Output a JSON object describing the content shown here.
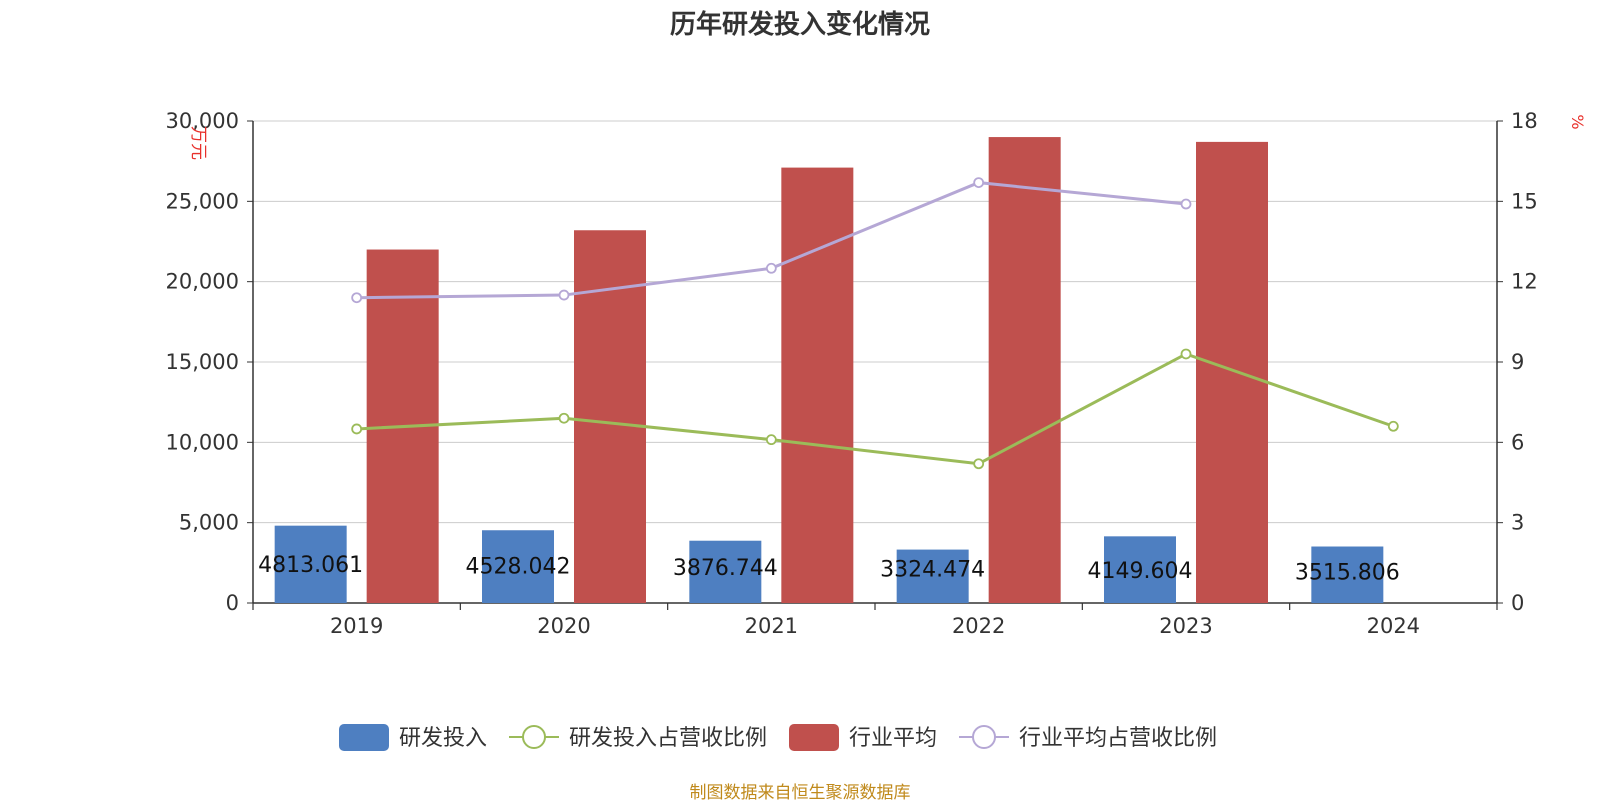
{
  "chart_data": {
    "type": "bar",
    "title": "历年研发投入变化情况",
    "categories": [
      "2019",
      "2020",
      "2021",
      "2022",
      "2023",
      "2024"
    ],
    "left_axis": {
      "label": "万元",
      "range": [
        0,
        30000
      ],
      "ticks": [
        "0",
        "5,000",
        "10,000",
        "15,000",
        "20,000",
        "25,000",
        "30,000"
      ]
    },
    "right_axis": {
      "label": "%",
      "range": [
        0,
        18
      ],
      "ticks": [
        "0",
        "3",
        "6",
        "9",
        "12",
        "15",
        "18"
      ]
    },
    "series": [
      {
        "name": "研发投入",
        "kind": "bar",
        "axis": "left",
        "color": "#4e7fc1",
        "values": [
          4813.061,
          4528.042,
          3876.744,
          3324.474,
          4149.604,
          3515.806
        ],
        "labels": [
          "4813.061",
          "4528.042",
          "3876.744",
          "3324.474",
          "4149.604",
          "3515.806"
        ]
      },
      {
        "name": "研发投入占营收比例",
        "kind": "line",
        "axis": "right",
        "color": "#9bbb59",
        "values": [
          6.5,
          6.9,
          6.1,
          5.2,
          9.3,
          6.6
        ]
      },
      {
        "name": "行业平均",
        "kind": "bar",
        "axis": "left",
        "color": "#c0504d",
        "values": [
          22000,
          23200,
          27100,
          29000,
          28700,
          null
        ]
      },
      {
        "name": "行业平均占营收比例",
        "kind": "line",
        "axis": "right",
        "color": "#b5a7d5",
        "values": [
          11.4,
          11.5,
          12.5,
          15.7,
          14.9,
          null
        ]
      }
    ],
    "grid": true,
    "legend_position": "bottom"
  },
  "footer": {
    "source": "制图数据来自恒生聚源数据库"
  }
}
